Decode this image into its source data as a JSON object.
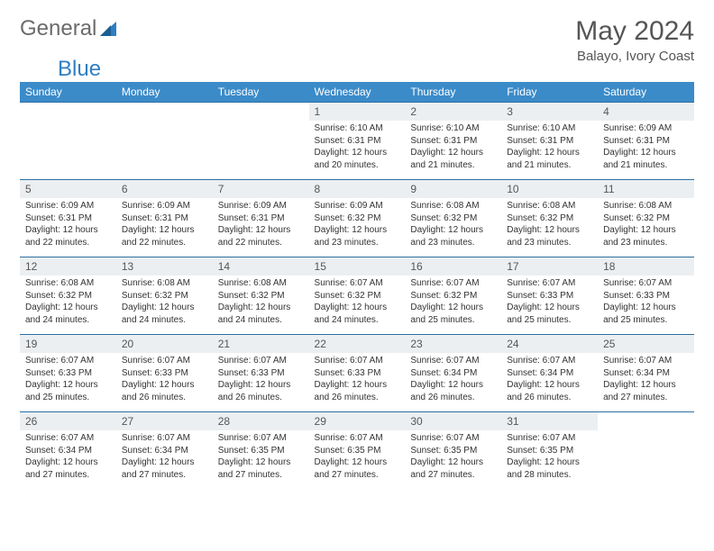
{
  "logo": {
    "text_general": "General",
    "text_blue": "Blue",
    "sail_color": "#2f7ec2"
  },
  "title": {
    "month": "May 2024",
    "location": "Balayo, Ivory Coast"
  },
  "colors": {
    "header_bg": "#3b8bc9",
    "header_text": "#ffffff",
    "cell_border": "#2d6fa3",
    "daynum_bg": "#eceff1",
    "text": "#333333"
  },
  "weekdays": [
    "Sunday",
    "Monday",
    "Tuesday",
    "Wednesday",
    "Thursday",
    "Friday",
    "Saturday"
  ],
  "weeks": [
    [
      {
        "empty": true
      },
      {
        "empty": true
      },
      {
        "empty": true
      },
      {
        "n": "1",
        "sr": "Sunrise: 6:10 AM",
        "ss": "Sunset: 6:31 PM",
        "d1": "Daylight: 12 hours",
        "d2": "and 20 minutes."
      },
      {
        "n": "2",
        "sr": "Sunrise: 6:10 AM",
        "ss": "Sunset: 6:31 PM",
        "d1": "Daylight: 12 hours",
        "d2": "and 21 minutes."
      },
      {
        "n": "3",
        "sr": "Sunrise: 6:10 AM",
        "ss": "Sunset: 6:31 PM",
        "d1": "Daylight: 12 hours",
        "d2": "and 21 minutes."
      },
      {
        "n": "4",
        "sr": "Sunrise: 6:09 AM",
        "ss": "Sunset: 6:31 PM",
        "d1": "Daylight: 12 hours",
        "d2": "and 21 minutes."
      }
    ],
    [
      {
        "n": "5",
        "sr": "Sunrise: 6:09 AM",
        "ss": "Sunset: 6:31 PM",
        "d1": "Daylight: 12 hours",
        "d2": "and 22 minutes."
      },
      {
        "n": "6",
        "sr": "Sunrise: 6:09 AM",
        "ss": "Sunset: 6:31 PM",
        "d1": "Daylight: 12 hours",
        "d2": "and 22 minutes."
      },
      {
        "n": "7",
        "sr": "Sunrise: 6:09 AM",
        "ss": "Sunset: 6:31 PM",
        "d1": "Daylight: 12 hours",
        "d2": "and 22 minutes."
      },
      {
        "n": "8",
        "sr": "Sunrise: 6:09 AM",
        "ss": "Sunset: 6:32 PM",
        "d1": "Daylight: 12 hours",
        "d2": "and 23 minutes."
      },
      {
        "n": "9",
        "sr": "Sunrise: 6:08 AM",
        "ss": "Sunset: 6:32 PM",
        "d1": "Daylight: 12 hours",
        "d2": "and 23 minutes."
      },
      {
        "n": "10",
        "sr": "Sunrise: 6:08 AM",
        "ss": "Sunset: 6:32 PM",
        "d1": "Daylight: 12 hours",
        "d2": "and 23 minutes."
      },
      {
        "n": "11",
        "sr": "Sunrise: 6:08 AM",
        "ss": "Sunset: 6:32 PM",
        "d1": "Daylight: 12 hours",
        "d2": "and 23 minutes."
      }
    ],
    [
      {
        "n": "12",
        "sr": "Sunrise: 6:08 AM",
        "ss": "Sunset: 6:32 PM",
        "d1": "Daylight: 12 hours",
        "d2": "and 24 minutes."
      },
      {
        "n": "13",
        "sr": "Sunrise: 6:08 AM",
        "ss": "Sunset: 6:32 PM",
        "d1": "Daylight: 12 hours",
        "d2": "and 24 minutes."
      },
      {
        "n": "14",
        "sr": "Sunrise: 6:08 AM",
        "ss": "Sunset: 6:32 PM",
        "d1": "Daylight: 12 hours",
        "d2": "and 24 minutes."
      },
      {
        "n": "15",
        "sr": "Sunrise: 6:07 AM",
        "ss": "Sunset: 6:32 PM",
        "d1": "Daylight: 12 hours",
        "d2": "and 24 minutes."
      },
      {
        "n": "16",
        "sr": "Sunrise: 6:07 AM",
        "ss": "Sunset: 6:32 PM",
        "d1": "Daylight: 12 hours",
        "d2": "and 25 minutes."
      },
      {
        "n": "17",
        "sr": "Sunrise: 6:07 AM",
        "ss": "Sunset: 6:33 PM",
        "d1": "Daylight: 12 hours",
        "d2": "and 25 minutes."
      },
      {
        "n": "18",
        "sr": "Sunrise: 6:07 AM",
        "ss": "Sunset: 6:33 PM",
        "d1": "Daylight: 12 hours",
        "d2": "and 25 minutes."
      }
    ],
    [
      {
        "n": "19",
        "sr": "Sunrise: 6:07 AM",
        "ss": "Sunset: 6:33 PM",
        "d1": "Daylight: 12 hours",
        "d2": "and 25 minutes."
      },
      {
        "n": "20",
        "sr": "Sunrise: 6:07 AM",
        "ss": "Sunset: 6:33 PM",
        "d1": "Daylight: 12 hours",
        "d2": "and 26 minutes."
      },
      {
        "n": "21",
        "sr": "Sunrise: 6:07 AM",
        "ss": "Sunset: 6:33 PM",
        "d1": "Daylight: 12 hours",
        "d2": "and 26 minutes."
      },
      {
        "n": "22",
        "sr": "Sunrise: 6:07 AM",
        "ss": "Sunset: 6:33 PM",
        "d1": "Daylight: 12 hours",
        "d2": "and 26 minutes."
      },
      {
        "n": "23",
        "sr": "Sunrise: 6:07 AM",
        "ss": "Sunset: 6:34 PM",
        "d1": "Daylight: 12 hours",
        "d2": "and 26 minutes."
      },
      {
        "n": "24",
        "sr": "Sunrise: 6:07 AM",
        "ss": "Sunset: 6:34 PM",
        "d1": "Daylight: 12 hours",
        "d2": "and 26 minutes."
      },
      {
        "n": "25",
        "sr": "Sunrise: 6:07 AM",
        "ss": "Sunset: 6:34 PM",
        "d1": "Daylight: 12 hours",
        "d2": "and 27 minutes."
      }
    ],
    [
      {
        "n": "26",
        "sr": "Sunrise: 6:07 AM",
        "ss": "Sunset: 6:34 PM",
        "d1": "Daylight: 12 hours",
        "d2": "and 27 minutes."
      },
      {
        "n": "27",
        "sr": "Sunrise: 6:07 AM",
        "ss": "Sunset: 6:34 PM",
        "d1": "Daylight: 12 hours",
        "d2": "and 27 minutes."
      },
      {
        "n": "28",
        "sr": "Sunrise: 6:07 AM",
        "ss": "Sunset: 6:35 PM",
        "d1": "Daylight: 12 hours",
        "d2": "and 27 minutes."
      },
      {
        "n": "29",
        "sr": "Sunrise: 6:07 AM",
        "ss": "Sunset: 6:35 PM",
        "d1": "Daylight: 12 hours",
        "d2": "and 27 minutes."
      },
      {
        "n": "30",
        "sr": "Sunrise: 6:07 AM",
        "ss": "Sunset: 6:35 PM",
        "d1": "Daylight: 12 hours",
        "d2": "and 27 minutes."
      },
      {
        "n": "31",
        "sr": "Sunrise: 6:07 AM",
        "ss": "Sunset: 6:35 PM",
        "d1": "Daylight: 12 hours",
        "d2": "and 28 minutes."
      },
      {
        "empty": true
      }
    ]
  ]
}
